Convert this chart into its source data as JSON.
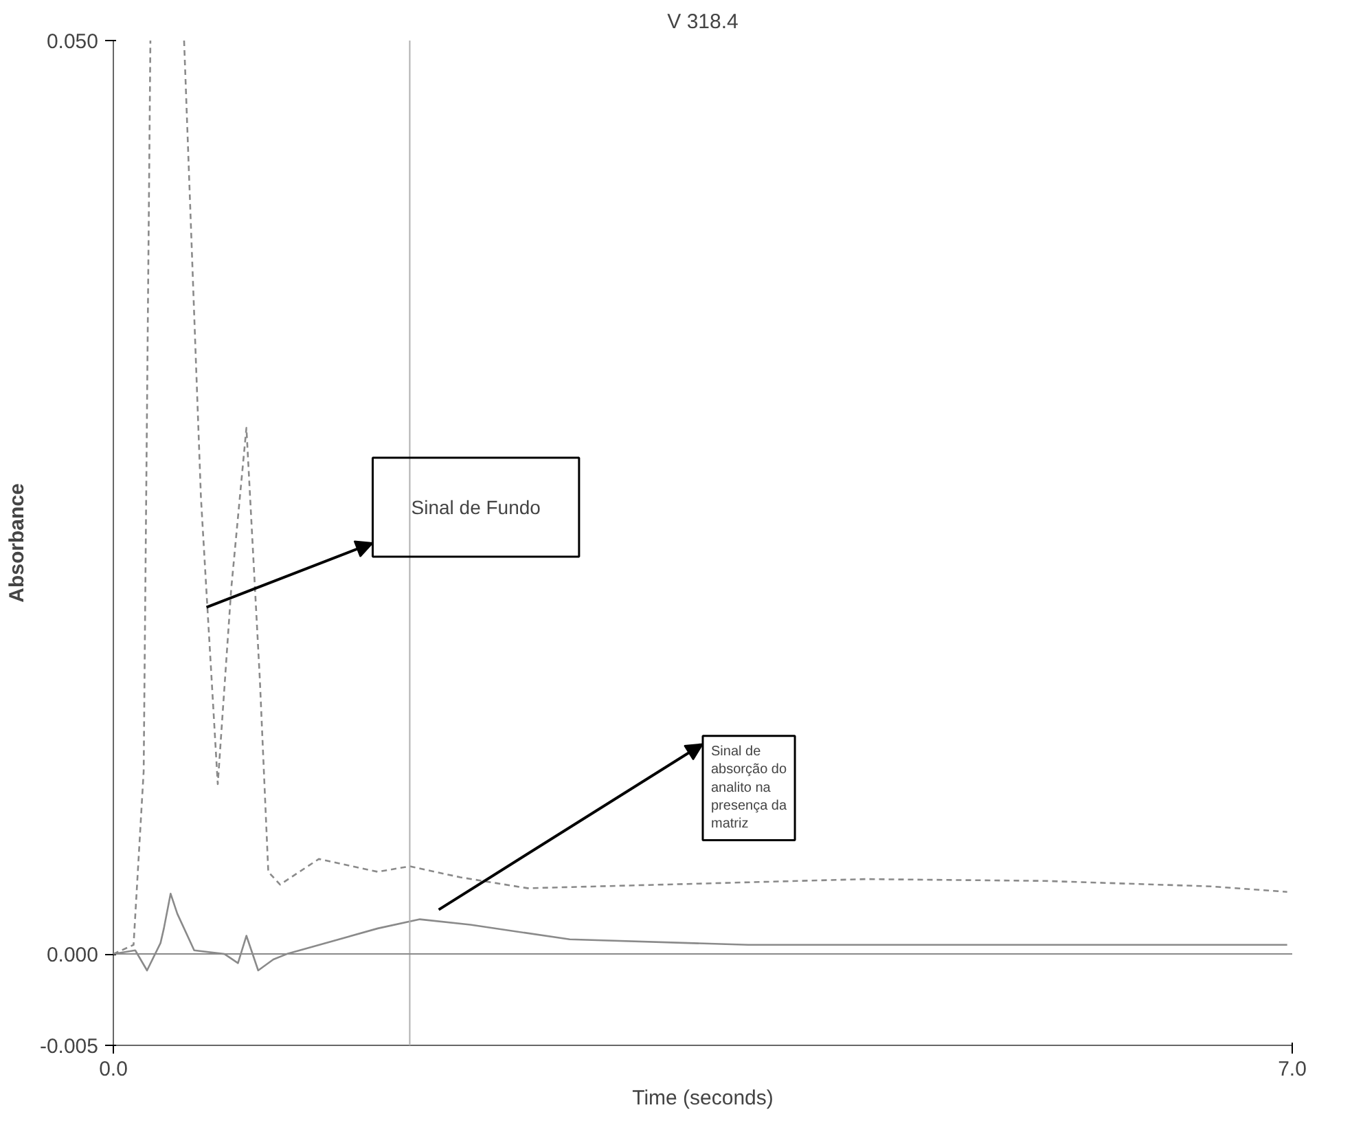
{
  "chart_data": {
    "type": "line",
    "title": "V 318.4",
    "xlabel": "Time (seconds)",
    "ylabel": "Absorbance",
    "xlim": [
      0,
      7
    ],
    "ylim": [
      -0.005,
      0.05
    ],
    "xticks": [
      {
        "value": 0,
        "label": "0.0"
      },
      {
        "value": 7,
        "label": "7.0"
      }
    ],
    "yticks": [
      {
        "value": 0.05,
        "label": "0.050"
      },
      {
        "value": 0,
        "label": "0.000"
      },
      {
        "value": -0.005,
        "label": "-0.005"
      }
    ],
    "grid": false,
    "series": [
      {
        "color": "#8a8a8a",
        "line_style": "dashed",
        "x": [
          0.0,
          0.12,
          0.18,
          0.22,
          0.3,
          0.42,
          0.52,
          0.62,
          0.7,
          0.79,
          0.87,
          0.92,
          0.99,
          1.22,
          1.57,
          1.76,
          2.06,
          2.46,
          3.27,
          4.47,
          5.53,
          6.52,
          6.97
        ],
        "values": [
          0,
          0.0005,
          0.01,
          0.05,
          null,
          0.05,
          0.025,
          0.0093,
          0.02,
          0.0288,
          0.015,
          0.0045,
          0.0038,
          0.0052,
          0.0045,
          0.0048,
          0.0042,
          0.0036,
          0.0038,
          0.0041,
          0.004,
          0.0037,
          0.0034
        ]
      },
      {
        "color": "#8a8a8a",
        "line_style": "solid",
        "x": [
          0.0,
          0.13,
          0.2,
          0.28,
          0.3,
          0.34,
          0.38,
          0.48,
          0.66,
          0.74,
          0.79,
          0.86,
          0.95,
          1.03,
          1.3,
          1.57,
          1.82,
          2.12,
          2.71,
          3.77,
          6.97
        ],
        "values": [
          0,
          0.0002,
          -0.0009,
          0.0006,
          0.0014,
          0.0033,
          0.0022,
          0.0002,
          0,
          -0.0005,
          0.001,
          -0.0009,
          -0.0003,
          0,
          0.0007,
          0.0014,
          0.0019,
          0.0016,
          0.0008,
          0.0005,
          0.0005
        ]
      }
    ],
    "ref_lines": [
      {
        "axis": "x",
        "value": 1.76,
        "color": "#b0b0b0"
      },
      {
        "axis": "y",
        "value": 0,
        "color": "#8a8a8a"
      }
    ],
    "annotations": [
      "Sinal de Fundo",
      "Sinal de absorção do analito na presença da matriz"
    ]
  }
}
